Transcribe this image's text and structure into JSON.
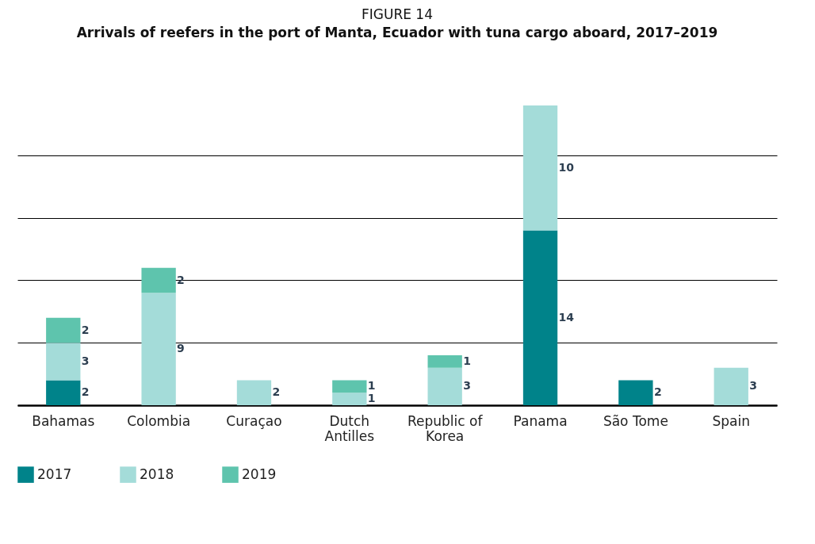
{
  "chart_data": {
    "type": "bar",
    "title": "FIGURE 14",
    "subtitle": "Arrivals of reefers in the port of Manta, Ecuador with tuna cargo aboard, 2017–2019",
    "categories": [
      "Bahamas",
      "Colombia",
      "Curaçao",
      "Dutch Antilles",
      "Republic of Korea",
      "Panama",
      "São Tome",
      "Spain"
    ],
    "series": [
      {
        "name": "2017",
        "color": "#00838a",
        "values": [
          2,
          null,
          null,
          null,
          null,
          14,
          2,
          null
        ]
      },
      {
        "name": "2018",
        "color": "#a4dcd9",
        "values": [
          3,
          9,
          2,
          1,
          3,
          10,
          null,
          3
        ]
      },
      {
        "name": "2019",
        "color": "#5ec4ad",
        "values": [
          2,
          2,
          null,
          1,
          1,
          null,
          null,
          null
        ]
      }
    ],
    "stacked": true,
    "data_labels": true,
    "grid": "y",
    "legend": "bottom",
    "tick_labels": "x"
  }
}
